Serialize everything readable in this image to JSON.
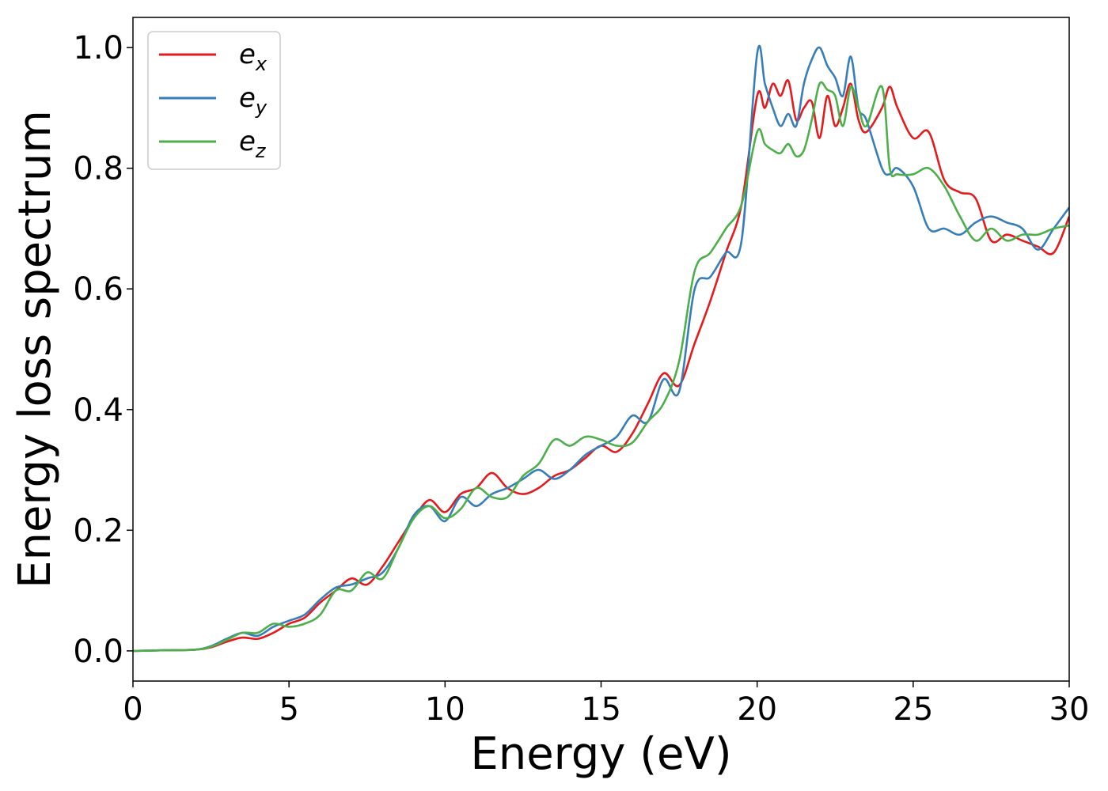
{
  "chart_data": {
    "type": "line",
    "xlabel": "Energy (eV)",
    "ylabel": "Energy loss spectrum",
    "xlim": [
      0,
      30
    ],
    "ylim": [
      -0.05,
      1.05
    ],
    "xticks": [
      0,
      5,
      10,
      15,
      20,
      25,
      30
    ],
    "xtick_labels": [
      "0",
      "5",
      "10",
      "15",
      "20",
      "25",
      "30"
    ],
    "yticks": [
      0.0,
      0.2,
      0.4,
      0.6,
      0.8,
      1.0
    ],
    "ytick_labels": [
      "0.0",
      "0.2",
      "0.4",
      "0.6",
      "0.8",
      "1.0"
    ],
    "grid": false,
    "legend_position": "top-left",
    "series": [
      {
        "name": "e_x",
        "label_base": "e",
        "label_sub": "x",
        "color": "#e41a1c",
        "x": [
          0,
          1,
          2,
          2.5,
          3,
          3.5,
          4,
          4.5,
          5,
          5.5,
          6,
          6.5,
          7,
          7.5,
          8,
          8.5,
          9,
          9.5,
          10,
          10.5,
          11,
          11.5,
          12,
          12.5,
          13,
          13.5,
          14,
          14.5,
          15,
          15.5,
          16,
          16.5,
          17,
          17.5,
          18,
          18.5,
          19,
          19.5,
          20,
          20.25,
          20.5,
          20.75,
          21,
          21.25,
          21.5,
          21.75,
          22,
          22.25,
          22.5,
          22.75,
          23,
          23.25,
          23.5,
          24,
          24.25,
          24.5,
          25,
          25.5,
          26,
          26.5,
          27,
          27.5,
          28,
          28.5,
          29,
          29.5,
          30
        ],
        "y": [
          0.0,
          0.001,
          0.002,
          0.006,
          0.015,
          0.022,
          0.02,
          0.03,
          0.045,
          0.055,
          0.08,
          0.1,
          0.12,
          0.11,
          0.14,
          0.18,
          0.22,
          0.25,
          0.23,
          0.26,
          0.27,
          0.295,
          0.27,
          0.26,
          0.27,
          0.29,
          0.3,
          0.32,
          0.34,
          0.33,
          0.36,
          0.41,
          0.46,
          0.44,
          0.51,
          0.58,
          0.66,
          0.74,
          0.92,
          0.9,
          0.94,
          0.92,
          0.945,
          0.88,
          0.9,
          0.91,
          0.85,
          0.92,
          0.87,
          0.9,
          0.94,
          0.88,
          0.86,
          0.9,
          0.935,
          0.9,
          0.85,
          0.86,
          0.78,
          0.76,
          0.75,
          0.68,
          0.69,
          0.68,
          0.67,
          0.66,
          0.72
        ]
      },
      {
        "name": "e_y",
        "label_base": "e",
        "label_sub": "y",
        "color": "#377eb8",
        "x": [
          0,
          1,
          2,
          2.5,
          3,
          3.5,
          4,
          4.5,
          5,
          5.5,
          6,
          6.5,
          7,
          7.5,
          8,
          8.5,
          9,
          9.5,
          10,
          10.5,
          11,
          11.5,
          12,
          12.5,
          13,
          13.5,
          14,
          14.5,
          15,
          15.5,
          16,
          16.5,
          17,
          17.5,
          18,
          18.5,
          19,
          19.5,
          20,
          20.25,
          20.5,
          20.75,
          21,
          21.25,
          21.5,
          21.75,
          22,
          22.25,
          22.5,
          22.75,
          23,
          23.25,
          23.5,
          24,
          24.25,
          24.5,
          25,
          25.5,
          26,
          26.5,
          27,
          27.5,
          28,
          28.5,
          29,
          29.5,
          30
        ],
        "y": [
          0.0,
          0.001,
          0.002,
          0.008,
          0.02,
          0.03,
          0.025,
          0.04,
          0.05,
          0.06,
          0.085,
          0.105,
          0.11,
          0.12,
          0.13,
          0.17,
          0.225,
          0.24,
          0.215,
          0.255,
          0.24,
          0.26,
          0.27,
          0.285,
          0.3,
          0.285,
          0.3,
          0.325,
          0.34,
          0.355,
          0.39,
          0.38,
          0.45,
          0.43,
          0.6,
          0.62,
          0.66,
          0.68,
          0.99,
          0.94,
          0.9,
          0.87,
          0.89,
          0.87,
          0.94,
          0.98,
          1.0,
          0.97,
          0.95,
          0.92,
          0.985,
          0.9,
          0.88,
          0.8,
          0.79,
          0.8,
          0.77,
          0.7,
          0.7,
          0.69,
          0.71,
          0.72,
          0.71,
          0.7,
          0.665,
          0.7,
          0.735
        ]
      },
      {
        "name": "e_z",
        "label_base": "e",
        "label_sub": "z",
        "color": "#4daf4a",
        "x": [
          0,
          1,
          2,
          2.5,
          3,
          3.5,
          4,
          4.5,
          5,
          5.5,
          6,
          6.5,
          7,
          7.5,
          8,
          8.5,
          9,
          9.5,
          10,
          10.5,
          11,
          11.5,
          12,
          12.5,
          13,
          13.5,
          14,
          14.5,
          15,
          15.5,
          16,
          16.5,
          17,
          17.5,
          18,
          18.5,
          19,
          19.5,
          20,
          20.25,
          20.5,
          20.75,
          21,
          21.25,
          21.5,
          21.75,
          22,
          22.25,
          22.5,
          22.75,
          23,
          23.25,
          23.5,
          24,
          24.25,
          24.5,
          25,
          25.5,
          26,
          26.5,
          27,
          27.5,
          28,
          28.5,
          29,
          29.5,
          30
        ],
        "y": [
          0.0,
          0.001,
          0.002,
          0.007,
          0.018,
          0.03,
          0.03,
          0.045,
          0.04,
          0.045,
          0.06,
          0.1,
          0.1,
          0.13,
          0.12,
          0.17,
          0.22,
          0.24,
          0.22,
          0.235,
          0.27,
          0.255,
          0.255,
          0.29,
          0.31,
          0.35,
          0.34,
          0.355,
          0.35,
          0.34,
          0.345,
          0.38,
          0.41,
          0.48,
          0.63,
          0.66,
          0.7,
          0.74,
          0.86,
          0.84,
          0.83,
          0.825,
          0.84,
          0.82,
          0.83,
          0.88,
          0.94,
          0.93,
          0.92,
          0.87,
          0.935,
          0.9,
          0.87,
          0.935,
          0.8,
          0.79,
          0.79,
          0.8,
          0.77,
          0.72,
          0.68,
          0.7,
          0.68,
          0.69,
          0.69,
          0.7,
          0.705
        ]
      }
    ]
  }
}
